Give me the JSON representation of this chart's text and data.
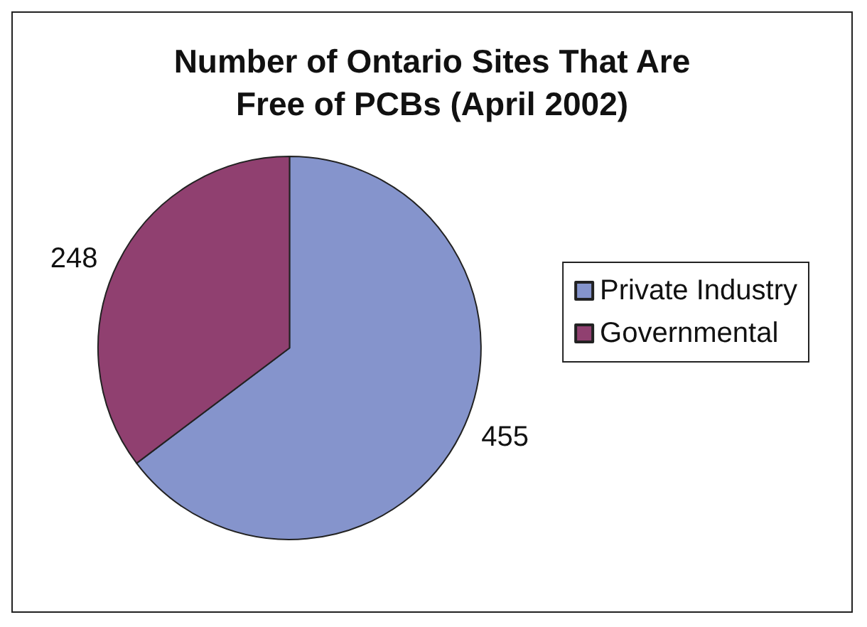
{
  "chart_data": {
    "type": "pie",
    "title": "Number of Ontario Sites That Are\nFree of PCBs (April 2002)",
    "categories": [
      "Private Industry",
      "Governmental"
    ],
    "values": [
      455,
      248
    ],
    "colors": [
      "#8594cc",
      "#904070"
    ],
    "data_labels": true,
    "legend": "right"
  }
}
